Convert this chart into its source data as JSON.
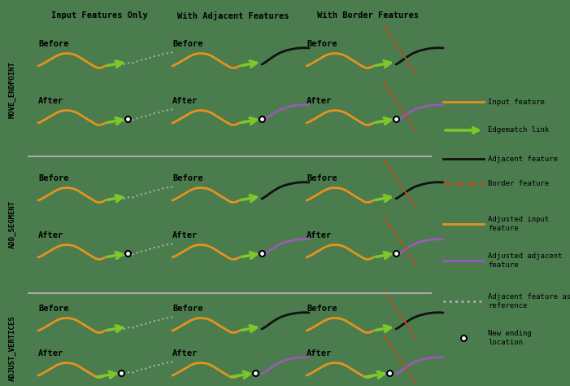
{
  "bg_color": "#4a7c4e",
  "col_headers": [
    "Input Features Only",
    "With Adjacent Features",
    "With Border Features"
  ],
  "row_headers": [
    "MOVE_ENDPOINT",
    "ADD_SEGMENT",
    "ADJUST_VERTICES"
  ],
  "colors": {
    "orange": "#e6921e",
    "green": "#7dc82a",
    "black": "#111111",
    "border_red": "#c04a20",
    "purple": "#9b59b6",
    "gray_ref": "#b0b0b0",
    "sep_line": "#aaaaaa"
  },
  "figsize": [
    7.01,
    4.74
  ],
  "dpi": 100
}
